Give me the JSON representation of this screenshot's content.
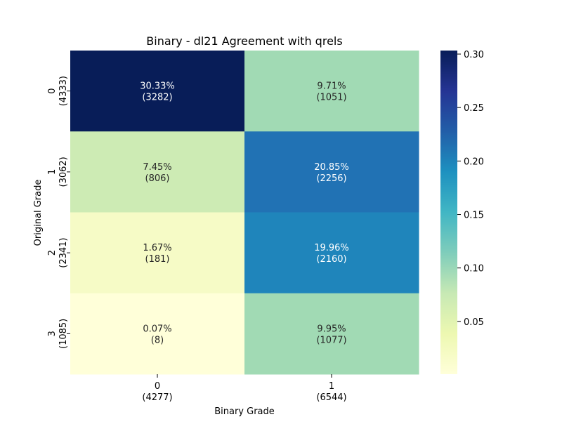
{
  "chart_data": {
    "type": "heatmap",
    "title": "Binary - dl21 Agreement with qrels",
    "xlabel": "Binary Grade",
    "ylabel": "Original Grade",
    "x_ticks": [
      {
        "label": "0",
        "count": "(4277)"
      },
      {
        "label": "1",
        "count": "(6544)"
      }
    ],
    "y_ticks": [
      {
        "label": "0",
        "count": "(4333)"
      },
      {
        "label": "1",
        "count": "(3062)"
      },
      {
        "label": "2",
        "count": "(2341)"
      },
      {
        "label": "3",
        "count": "(1085)"
      }
    ],
    "cells": [
      [
        {
          "value": 0.3033,
          "percent": "30.33%",
          "count": "(3282)",
          "color": "#081d58",
          "text_color": "#ffffff"
        },
        {
          "value": 0.0971,
          "percent": "9.71%",
          "count": "(1051)",
          "color": "#a1dab4",
          "text_color": "#262626"
        }
      ],
      [
        {
          "value": 0.0745,
          "percent": "7.45%",
          "count": "(806)",
          "color": "#cdebb4",
          "text_color": "#262626"
        },
        {
          "value": 0.2085,
          "percent": "20.85%",
          "count": "(2256)",
          "color": "#2172b4",
          "text_color": "#ffffff"
        }
      ],
      [
        {
          "value": 0.0167,
          "percent": "1.67%",
          "count": "(181)",
          "color": "#f6fbc6",
          "text_color": "#262626"
        },
        {
          "value": 0.1996,
          "percent": "19.96%",
          "count": "(2160)",
          "color": "#1f85bb",
          "text_color": "#ffffff"
        }
      ],
      [
        {
          "value": 0.0007,
          "percent": "0.07%",
          "count": "(8)",
          "color": "#ffffd9",
          "text_color": "#262626"
        },
        {
          "value": 0.0995,
          "percent": "9.95%",
          "count": "(1077)",
          "color": "#a1dab4",
          "text_color": "#262626"
        }
      ]
    ],
    "colorbar": {
      "colormap": "YlGnBu",
      "range": [
        0.0007,
        0.3033
      ],
      "ticks": [
        {
          "value": 0.05,
          "label": "0.05"
        },
        {
          "value": 0.1,
          "label": "0.10"
        },
        {
          "value": 0.15,
          "label": "0.15"
        },
        {
          "value": 0.2,
          "label": "0.20"
        },
        {
          "value": 0.25,
          "label": "0.25"
        },
        {
          "value": 0.3,
          "label": "0.30"
        }
      ],
      "stops": [
        "#ffffd9",
        "#edf8b1",
        "#c7e9b4",
        "#7fcdbb",
        "#41b6c4",
        "#1d91c0",
        "#225ea8",
        "#253494",
        "#081d58"
      ]
    }
  }
}
